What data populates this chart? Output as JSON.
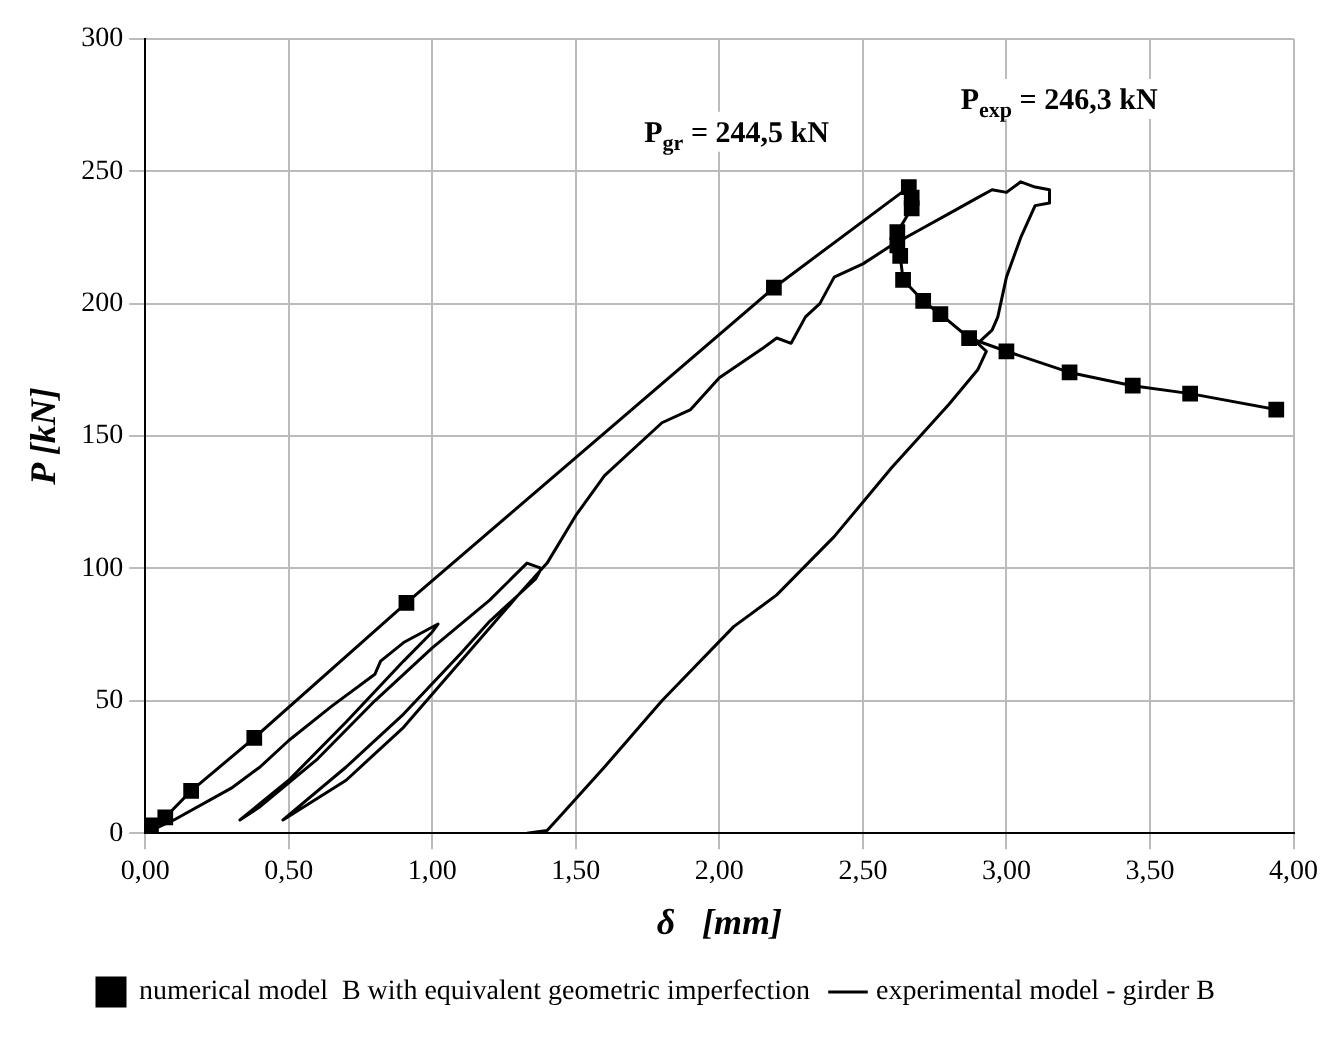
{
  "chart_data": {
    "type": "line",
    "xlabel": "δ   [mm]",
    "ylabel": "P [kN]",
    "xlim": [
      0,
      4
    ],
    "ylim": [
      0,
      300
    ],
    "xticks": [
      {
        "value": 0,
        "label": "0,00"
      },
      {
        "value": 0.5,
        "label": "0,50"
      },
      {
        "value": 1,
        "label": "1,00"
      },
      {
        "value": 1.5,
        "label": "1,50"
      },
      {
        "value": 2,
        "label": "2,00"
      },
      {
        "value": 2.5,
        "label": "2,50"
      },
      {
        "value": 3,
        "label": "3,00"
      },
      {
        "value": 3.5,
        "label": "3,50"
      },
      {
        "value": 4,
        "label": "4,00"
      }
    ],
    "yticks": [
      0,
      50,
      100,
      150,
      200,
      250,
      300
    ],
    "grid": true,
    "legend": "bottom",
    "annotations": [
      {
        "text": "P$_{gr}$ = 244,5 kN",
        "x": 2.66,
        "y": 244.5
      },
      {
        "text": "P$_{exp}$ = 246,3 kN",
        "x": 3.05,
        "y": 246.3
      }
    ],
    "series": [
      {
        "name": "numerical model  B with equivalent geometric imperfection",
        "color": "#000000",
        "marker": "square",
        "x": [
          0,
          0.02,
          0.07,
          0.16,
          0.38,
          0.91,
          2.19,
          2.66,
          2.67,
          2.67,
          2.62,
          2.62,
          2.63,
          2.64,
          2.71,
          2.77,
          2.87,
          3.0,
          3.22,
          3.44,
          3.64,
          3.94
        ],
        "values": [
          0,
          3,
          6,
          16,
          36,
          87,
          206,
          244,
          240,
          236,
          227,
          222,
          218,
          209,
          201,
          196,
          187,
          182,
          174,
          169,
          166,
          160
        ]
      },
      {
        "name": "experimental model - girder B",
        "color": "#000000",
        "marker": "none",
        "x": [
          0,
          0.1,
          0.3,
          0.4,
          0.5,
          0.65,
          0.8,
          0.82,
          0.9,
          1.02,
          1.0,
          0.9,
          0.7,
          0.5,
          0.33,
          0.4,
          0.6,
          0.8,
          1.0,
          1.2,
          1.33,
          1.38,
          1.36,
          1.2,
          1.1,
          0.9,
          0.7,
          0.48,
          0.7,
          0.9,
          1.1,
          1.3,
          1.4,
          1.5,
          1.6,
          1.8,
          1.9,
          2.0,
          2.15,
          2.2,
          2.25,
          2.3,
          2.35,
          2.4,
          2.5,
          2.6,
          2.7,
          2.8,
          2.9,
          2.95,
          3.0,
          3.05,
          3.1,
          3.15,
          3.15,
          3.1,
          3.05,
          3.0,
          2.97,
          2.95,
          2.9,
          2.93,
          2.9,
          2.8,
          2.6,
          2.4,
          2.2,
          2.05,
          1.8,
          1.6,
          1.45,
          1.4,
          1.33
        ],
        "values": [
          0,
          5,
          17,
          25,
          35,
          48,
          60,
          65,
          72,
          79,
          76,
          65,
          42,
          20,
          5,
          10,
          28,
          50,
          70,
          88,
          102,
          100,
          96,
          80,
          68,
          45,
          25,
          5,
          20,
          40,
          65,
          90,
          102,
          120,
          135,
          155,
          160,
          172,
          183,
          187,
          185,
          195,
          200,
          210,
          215,
          222,
          228,
          234,
          240,
          243,
          242,
          246,
          244,
          243,
          238,
          237,
          225,
          210,
          195,
          190,
          185,
          182,
          175,
          162,
          138,
          112,
          90,
          78,
          50,
          25,
          7,
          1,
          0
        ]
      }
    ]
  }
}
